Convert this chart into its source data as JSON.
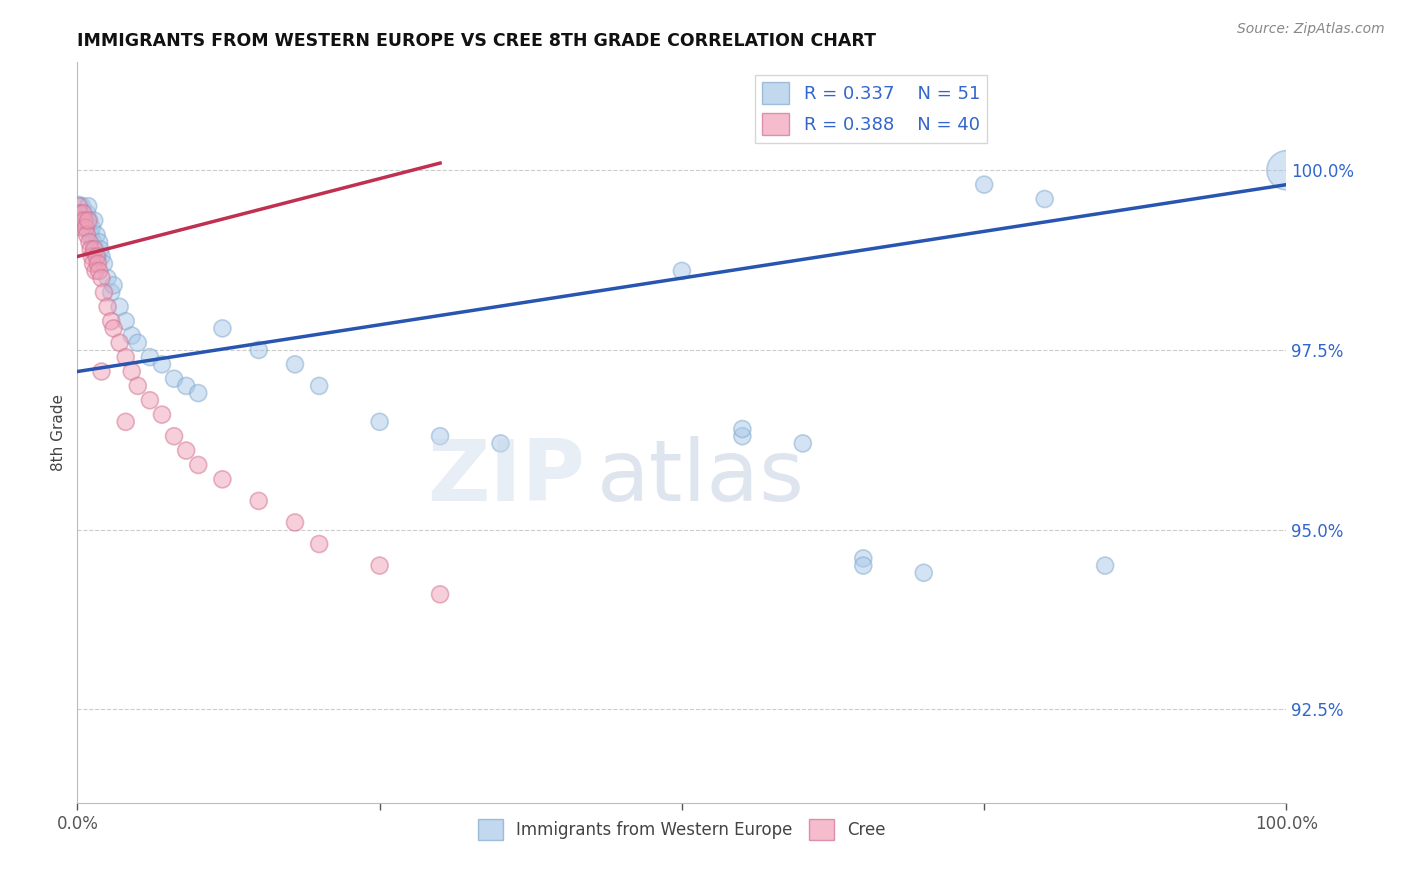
{
  "title": "IMMIGRANTS FROM WESTERN EUROPE VS CREE 8TH GRADE CORRELATION CHART",
  "source_text": "Source: ZipAtlas.com",
  "ylabel": "8th Grade",
  "xlim": [
    0.0,
    1.0
  ],
  "ylim": [
    91.2,
    101.5
  ],
  "yticks": [
    92.5,
    95.0,
    97.5,
    100.0
  ],
  "ytick_labels": [
    "92.5%",
    "95.0%",
    "97.5%",
    "100.0%"
  ],
  "blue_label": "Immigrants from Western Europe",
  "pink_label": "Cree",
  "blue_R": "0.337",
  "blue_N": "51",
  "pink_R": "0.388",
  "pink_N": "40",
  "blue_color": "#a8c8e8",
  "pink_color": "#f0a0b8",
  "blue_edge_color": "#80a8cc",
  "pink_edge_color": "#d07090",
  "blue_trend_color": "#2855b0",
  "pink_trend_color": "#c03050",
  "background_color": "#ffffff",
  "blue_x": [
    0.001,
    0.002,
    0.003,
    0.004,
    0.005,
    0.006,
    0.007,
    0.008,
    0.009,
    0.01,
    0.011,
    0.012,
    0.013,
    0.014,
    0.015,
    0.016,
    0.017,
    0.018,
    0.019,
    0.02,
    0.022,
    0.025,
    0.028,
    0.03,
    0.035,
    0.04,
    0.045,
    0.05,
    0.06,
    0.07,
    0.08,
    0.09,
    0.1,
    0.12,
    0.15,
    0.18,
    0.2,
    0.25,
    0.3,
    0.35,
    0.5,
    0.55,
    0.6,
    0.65,
    0.7,
    0.75,
    0.8,
    0.55,
    0.65,
    0.85,
    1.0
  ],
  "blue_y": [
    99.5,
    99.4,
    99.3,
    99.5,
    99.4,
    99.3,
    99.2,
    99.4,
    99.5,
    99.3,
    99.1,
    99.2,
    99.0,
    99.3,
    98.9,
    99.1,
    98.8,
    99.0,
    98.9,
    98.8,
    98.7,
    98.5,
    98.3,
    98.4,
    98.1,
    97.9,
    97.7,
    97.6,
    97.4,
    97.3,
    97.1,
    97.0,
    96.9,
    97.8,
    97.5,
    97.3,
    97.0,
    96.5,
    96.3,
    96.2,
    98.6,
    96.3,
    96.2,
    94.6,
    94.4,
    99.8,
    99.6,
    96.4,
    94.5,
    94.5,
    100.0
  ],
  "blue_sizes": [
    200,
    150,
    150,
    150,
    150,
    150,
    150,
    150,
    150,
    150,
    150,
    150,
    150,
    150,
    150,
    150,
    150,
    150,
    150,
    150,
    150,
    150,
    150,
    150,
    150,
    150,
    150,
    150,
    150,
    150,
    150,
    150,
    150,
    150,
    150,
    150,
    150,
    150,
    150,
    150,
    150,
    150,
    150,
    150,
    150,
    150,
    150,
    150,
    150,
    150,
    800
  ],
  "pink_x": [
    0.001,
    0.002,
    0.003,
    0.004,
    0.005,
    0.006,
    0.007,
    0.008,
    0.009,
    0.01,
    0.011,
    0.012,
    0.013,
    0.014,
    0.015,
    0.016,
    0.017,
    0.018,
    0.02,
    0.022,
    0.025,
    0.028,
    0.03,
    0.035,
    0.04,
    0.045,
    0.05,
    0.06,
    0.07,
    0.08,
    0.09,
    0.1,
    0.12,
    0.15,
    0.18,
    0.2,
    0.25,
    0.3,
    0.04,
    0.02
  ],
  "pink_y": [
    99.5,
    99.4,
    99.3,
    99.2,
    99.4,
    99.3,
    99.2,
    99.1,
    99.3,
    99.0,
    98.9,
    98.8,
    98.7,
    98.9,
    98.6,
    98.8,
    98.7,
    98.6,
    98.5,
    98.3,
    98.1,
    97.9,
    97.8,
    97.6,
    97.4,
    97.2,
    97.0,
    96.8,
    96.6,
    96.3,
    96.1,
    95.9,
    95.7,
    95.4,
    95.1,
    94.8,
    94.5,
    94.1,
    96.5,
    97.2
  ],
  "pink_sizes": [
    150,
    150,
    150,
    150,
    150,
    150,
    150,
    150,
    150,
    150,
    150,
    150,
    150,
    150,
    150,
    150,
    150,
    150,
    150,
    150,
    150,
    150,
    150,
    150,
    150,
    150,
    150,
    150,
    150,
    150,
    150,
    150,
    150,
    150,
    150,
    150,
    150,
    150,
    150,
    150
  ],
  "blue_trend_x0": 0.0,
  "blue_trend_y0": 97.2,
  "blue_trend_x1": 1.0,
  "blue_trend_y1": 99.8,
  "pink_trend_x0": 0.0,
  "pink_trend_y0": 98.8,
  "pink_trend_x1": 0.3,
  "pink_trend_y1": 100.1
}
